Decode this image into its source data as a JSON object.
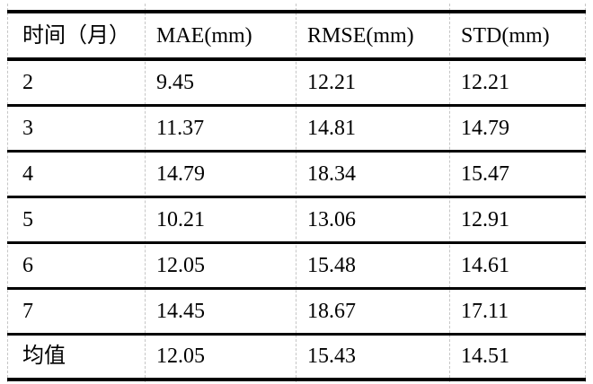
{
  "table": {
    "headers": [
      "时间（月）",
      "MAE(mm)",
      "RMSE(mm)",
      "STD(mm)"
    ],
    "rows": [
      [
        "2",
        "9.45",
        "12.21",
        "12.21"
      ],
      [
        "3",
        "11.37",
        "14.81",
        "14.79"
      ],
      [
        "4",
        "14.79",
        "18.34",
        "15.47"
      ],
      [
        "5",
        "10.21",
        "13.06",
        "12.91"
      ],
      [
        "6",
        "12.05",
        "15.48",
        "14.61"
      ],
      [
        "7",
        "14.45",
        "18.67",
        "17.11"
      ],
      [
        "均值",
        "12.05",
        "15.43",
        "14.51"
      ]
    ]
  },
  "colors": {
    "text": "#000000",
    "rule": "#000000",
    "gridline": "#c6c6c6",
    "background": "#ffffff"
  }
}
